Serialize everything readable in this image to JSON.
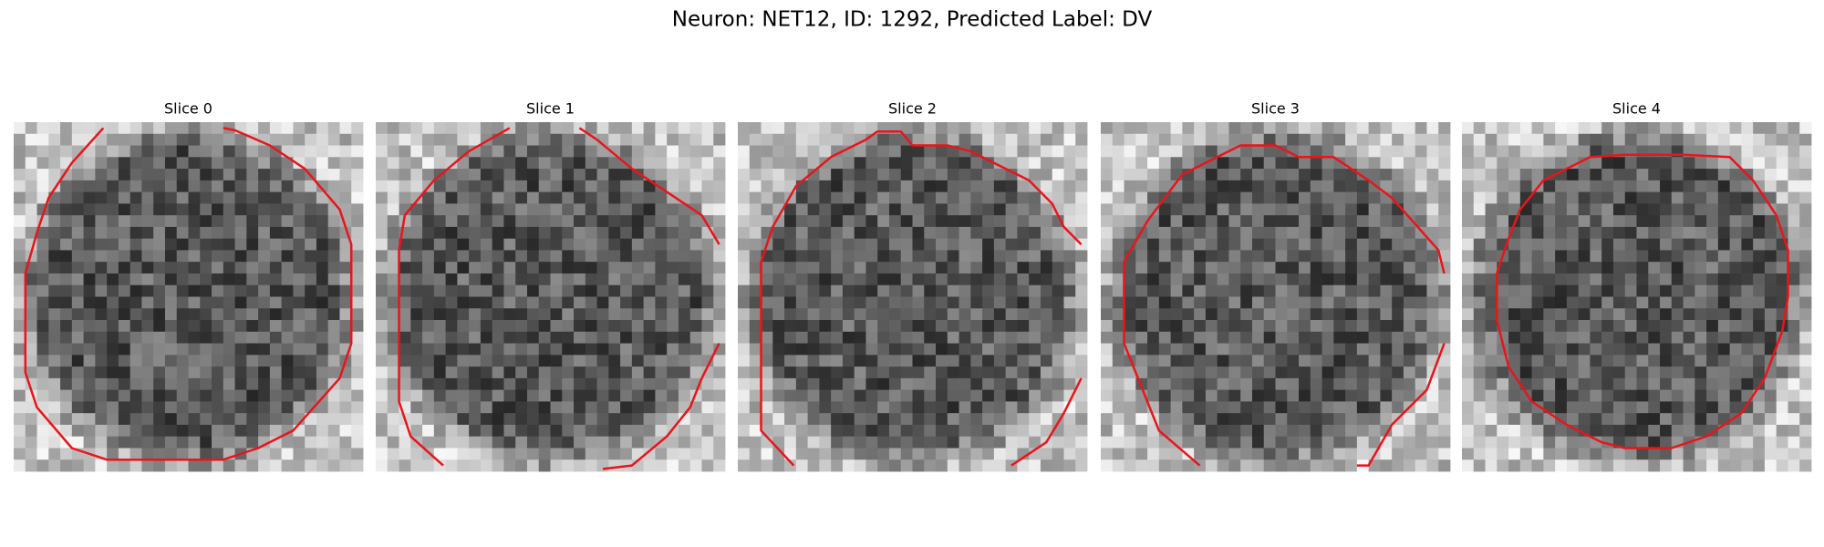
{
  "title": "Neuron: NET12, ID: 1292, Predicted Label: DV",
  "panels": [
    {
      "title": "Slice 0"
    },
    {
      "title": "Slice 1"
    },
    {
      "title": "Slice 2"
    },
    {
      "title": "Slice 3"
    },
    {
      "title": "Slice 4"
    }
  ]
}
